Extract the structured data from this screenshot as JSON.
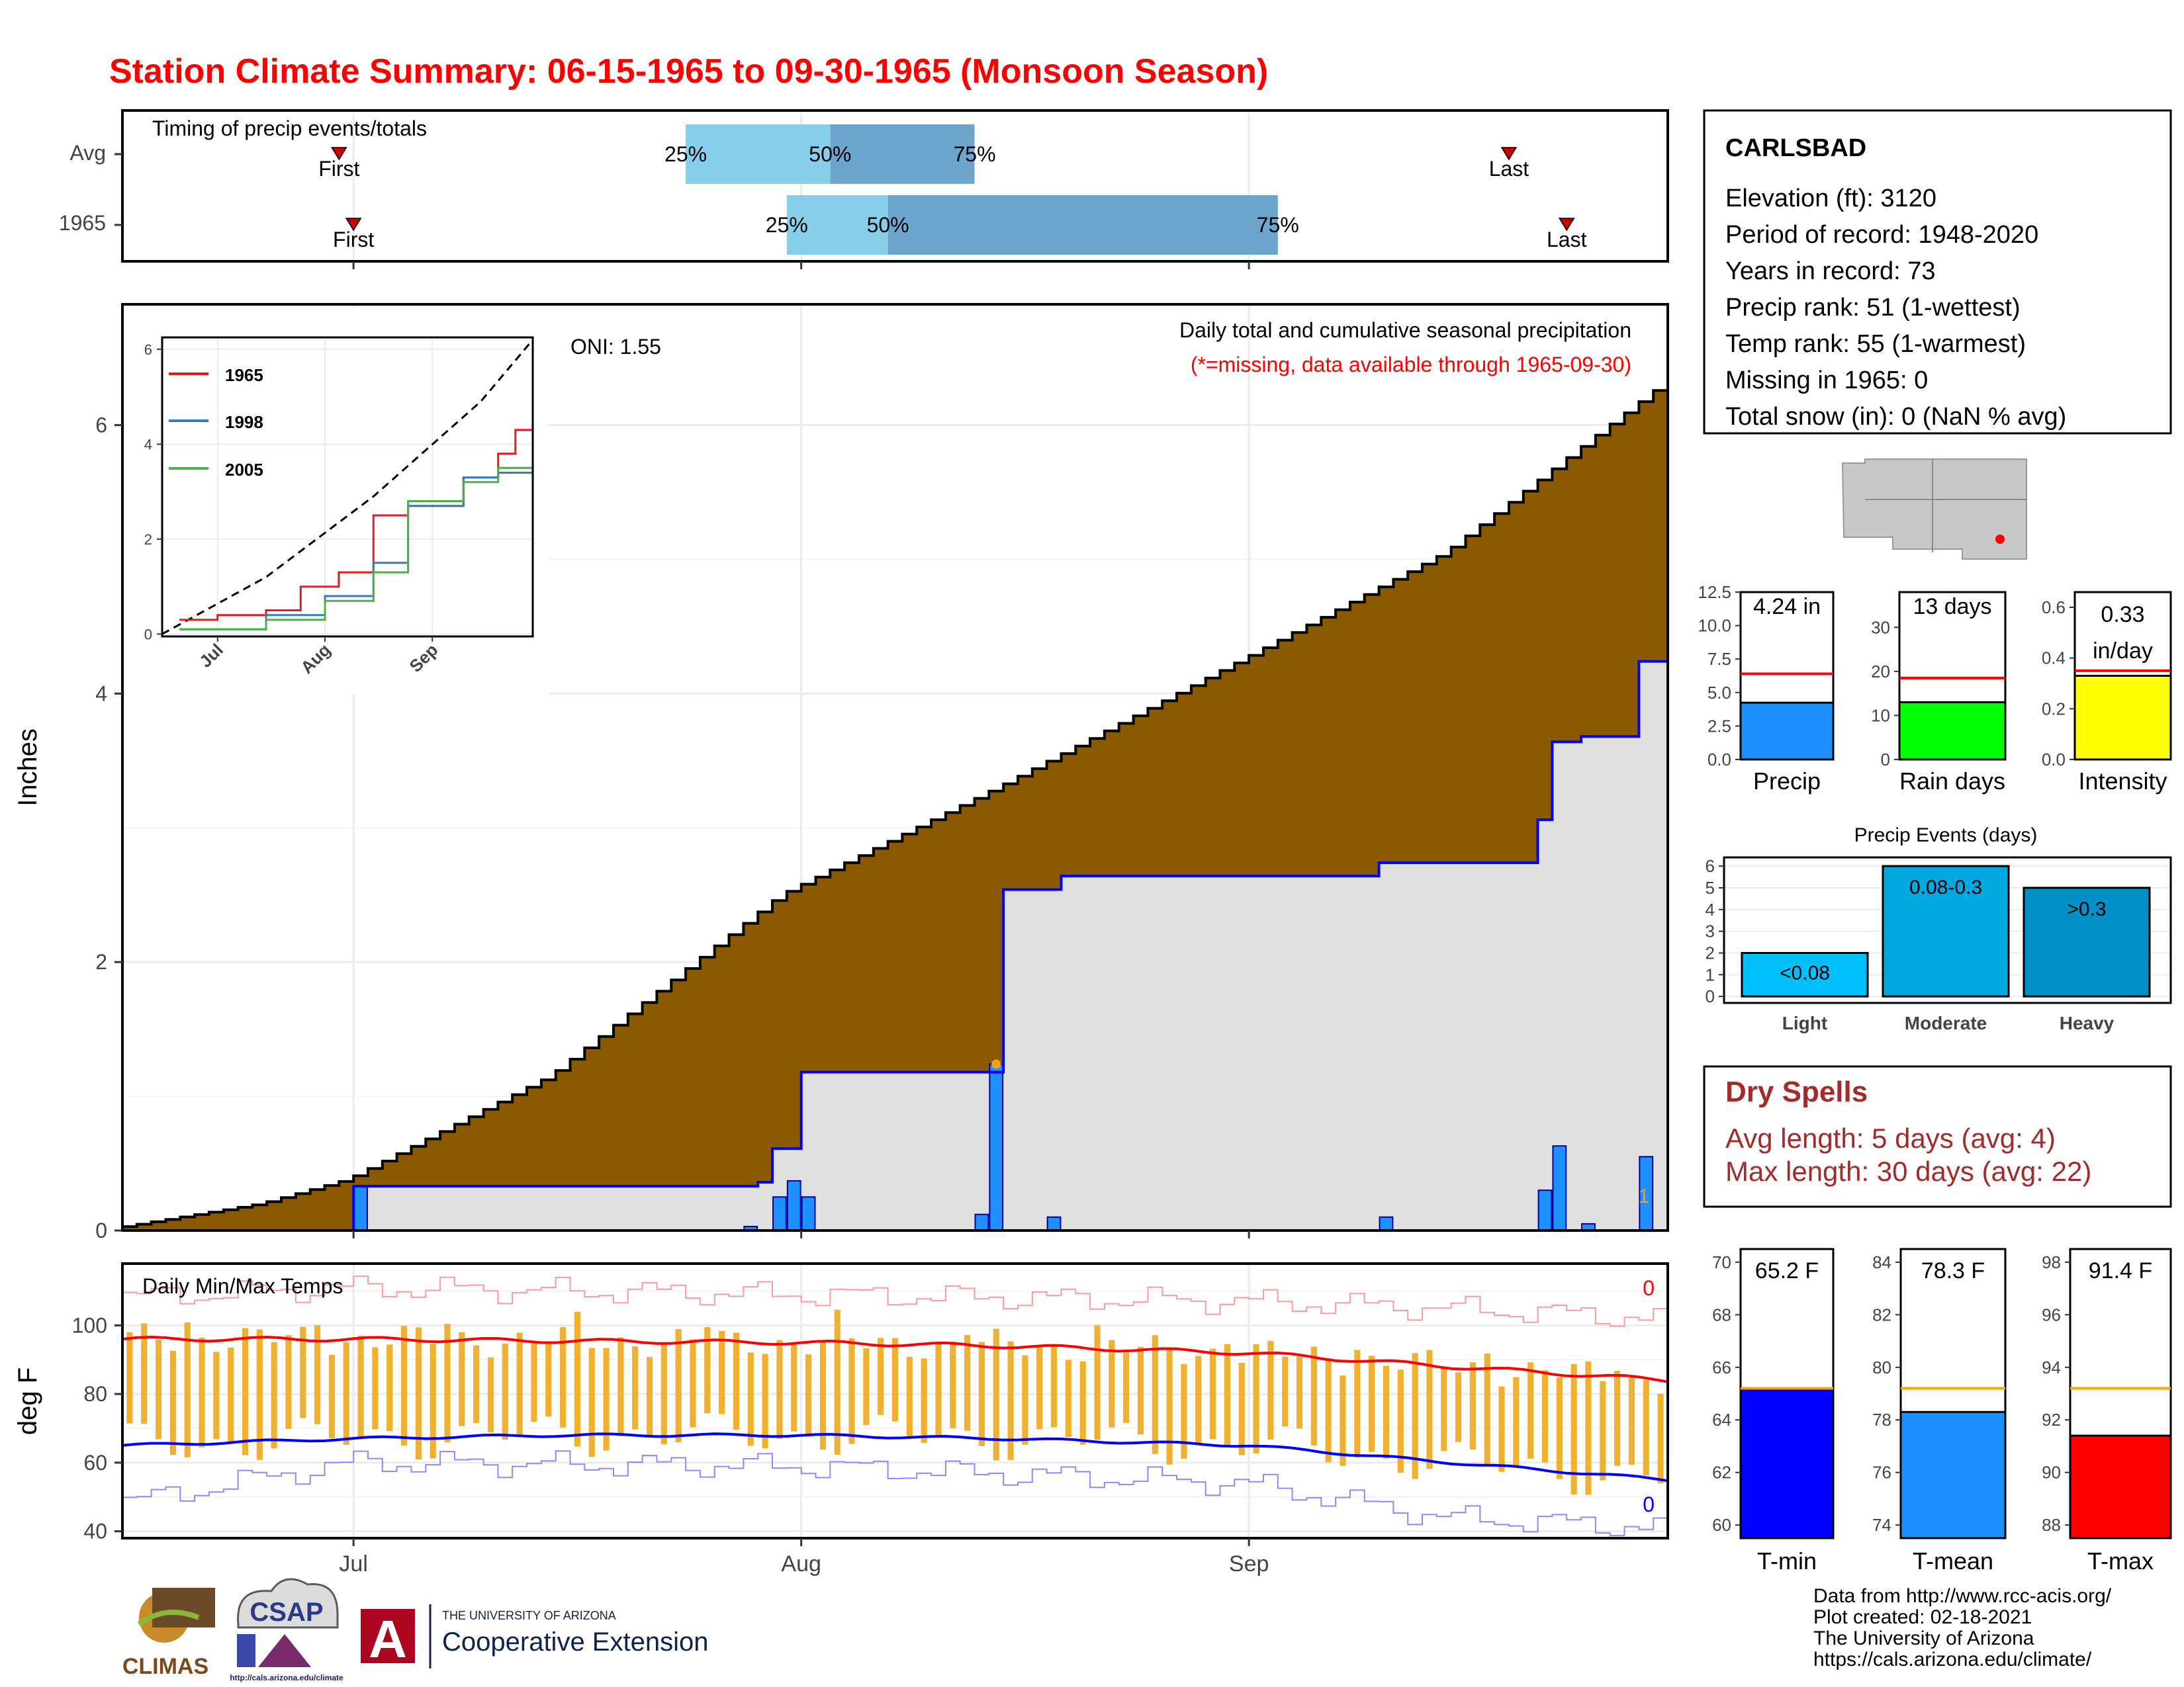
{
  "header": {
    "title": "Station Climate Summary: 06-15-1965 to 09-30-1965 (Monsoon Season)"
  },
  "colors": {
    "title": "#ff0000",
    "cumulative_avg_fill": "#8b5a00",
    "seasonal_area_fill": "#e0e0e0",
    "cumulative_line": "#0000ff",
    "daily_bar": "#1e90ff",
    "timing_q1": "#87ceeb",
    "timing_q2": "#6ca6cd",
    "temp_bar": "#f0b030",
    "tmax_avg_line": "#ff0000",
    "tmin_avg_line": "#0000ff",
    "dry_spell_text": "#a52a2a"
  },
  "timing": {
    "title": "Timing of precip events/totals",
    "rows": [
      {
        "label": "Avg",
        "first_label": "First",
        "last_label": "Last",
        "first": "06-30",
        "p25": "07-24",
        "p50": "08-03",
        "p75": "08-13",
        "last": "09-19"
      },
      {
        "label": "1965",
        "first_label": "First",
        "last_label": "Last",
        "first": "07-01",
        "p25": "07-31",
        "p50": "08-07",
        "p75": "09-03",
        "last": "09-23"
      }
    ],
    "pct_labels": [
      "25%",
      "50%",
      "75%"
    ]
  },
  "precip_panel": {
    "ylabel": "Inches",
    "oni": "ONI: 1.55",
    "subtitle1": "Daily total and cumulative seasonal precipitation",
    "subtitle2": "(*=missing, data available through 1965-09-30)",
    "missing_count": "1",
    "yticks": [
      "0",
      "2",
      "4",
      "6"
    ],
    "xticks": [
      "Jul",
      "Aug",
      "Sep"
    ]
  },
  "inset": {
    "legend": [
      "1965",
      "1998",
      "2005"
    ],
    "legend_colors": [
      "#e41a1c",
      "#377eb8",
      "#4daf4a"
    ],
    "yticks": [
      "0",
      "2",
      "4",
      "6"
    ],
    "xticks": [
      "Jul",
      "Aug",
      "Sep"
    ]
  },
  "temp_panel": {
    "ylabel": "deg F",
    "title": "Daily Min/Max Temps",
    "max_count": "0",
    "min_count": "0",
    "yticks": [
      "40",
      "60",
      "80",
      "100"
    ]
  },
  "station": {
    "name": "CARLSBAD",
    "lines": [
      "Elevation (ft): 3120",
      "Period of record: 1948-2020",
      "Years in record: 73",
      "Precip rank: 51 (1-wettest)",
      "Temp rank: 55 (1-warmest)",
      "Missing in 1965: 0",
      "Total snow (in): 0 (NaN % avg)"
    ]
  },
  "mini_bars": [
    {
      "label": "Precip",
      "value_text": "4.24 in",
      "value_text2": "",
      "value": 4.24,
      "avg": 6.4,
      "ymax": 12.5,
      "yticks": [
        "0.0",
        "2.5",
        "5.0",
        "7.5",
        "10.0",
        "12.5"
      ],
      "tick_vals": [
        0,
        2.5,
        5,
        7.5,
        10,
        12.5
      ],
      "color": "#1e90ff"
    },
    {
      "label": "Rain days",
      "value_text": "13 days",
      "value_text2": "",
      "value": 13,
      "avg": 18.5,
      "ymax": 38,
      "yticks": [
        "0",
        "10",
        "20",
        "30"
      ],
      "tick_vals": [
        0,
        10,
        20,
        30
      ],
      "color": "#00ff00"
    },
    {
      "label": "Intensity",
      "value_text": "0.33",
      "value_text2": "in/day",
      "value": 0.33,
      "avg": 0.35,
      "ymax": 0.66,
      "yticks": [
        "0.0",
        "0.2",
        "0.4",
        "0.6"
      ],
      "tick_vals": [
        0,
        0.2,
        0.4,
        0.6
      ],
      "color": "#ffff00"
    }
  ],
  "precip_events": {
    "title": "Precip Events (days)",
    "categories": [
      "Light",
      "Moderate",
      "Heavy"
    ],
    "bar_labels": [
      "<0.08",
      "0.08-0.3",
      ">0.3"
    ],
    "values": [
      2,
      6,
      5
    ],
    "colors": [
      "#00bfff",
      "#00a8e0",
      "#0090c8"
    ],
    "yticks": [
      "0",
      "1",
      "2",
      "3",
      "4",
      "5",
      "6"
    ]
  },
  "dry_spells": {
    "title": "Dry Spells",
    "avg_length": "Avg length: 5 days (avg: 4)",
    "max_length": "Max length: 30 days (avg: 22)"
  },
  "temp_bars": [
    {
      "label": "T-min",
      "value_text": "65.2 F",
      "value": 65.2,
      "avg": 65.2,
      "ymin": 59.5,
      "ymax": 70.5,
      "yticks": [
        "60",
        "62",
        "64",
        "66",
        "68",
        "70"
      ],
      "tick_vals": [
        60,
        62,
        64,
        66,
        68,
        70
      ],
      "color": "#0000ff"
    },
    {
      "label": "T-mean",
      "value_text": "78.3 F",
      "value": 78.3,
      "avg": 79.2,
      "ymin": 73.5,
      "ymax": 84.5,
      "yticks": [
        "74",
        "76",
        "78",
        "80",
        "82",
        "84"
      ],
      "tick_vals": [
        74,
        76,
        78,
        80,
        82,
        84
      ],
      "color": "#1e90ff"
    },
    {
      "label": "T-max",
      "value_text": "91.4 F",
      "value": 91.4,
      "avg": 93.2,
      "ymin": 87.5,
      "ymax": 98.5,
      "yticks": [
        "88",
        "90",
        "92",
        "94",
        "96",
        "98"
      ],
      "tick_vals": [
        88,
        90,
        92,
        94,
        96,
        98
      ],
      "color": "#ff0000"
    }
  ],
  "footer": {
    "credits": [
      "Data from http://www.rcc-acis.org/",
      "Plot created: 02-18-2021",
      "The University of Arizona",
      "https://cals.arizona.edu/climate/"
    ],
    "logos": {
      "climas": "CLIMAS",
      "csap": "CSAP",
      "csap_url": "http://cals.arizona.edu/climate",
      "ua_small": "THE UNIVERSITY OF ARIZONA",
      "ua_big": "Cooperative Extension",
      "ua_letter": "A"
    }
  },
  "chart_data": [
    {
      "type": "area",
      "title": "Daily total and cumulative seasonal precipitation",
      "ylabel": "Inches",
      "ylim": [
        0,
        6.9
      ],
      "x_range": [
        "1965-06-15",
        "1965-09-30"
      ],
      "series": [
        {
          "name": "",
          "kind": "avg cumulative",
          "dates": [
            "06-15",
            "06-25",
            "07-01",
            "07-15",
            "07-31",
            "08-15",
            "08-31",
            "09-15",
            "09-30"
          ],
          "values": [
            0.02,
            0.2,
            0.38,
            1.15,
            2.5,
            3.3,
            4.2,
            5.05,
            6.3
          ]
        },
        {
          "name": "",
          "kind": "1965 cumulative",
          "dates": [
            "06-15",
            "07-01",
            "07-28",
            "07-29",
            "07-30",
            "08-01",
            "08-14",
            "08-15",
            "08-19",
            "09-09",
            "09-10",
            "09-21",
            "09-22",
            "09-24",
            "09-25",
            "09-27",
            "09-28",
            "09-30"
          ],
          "values": [
            0.0,
            0.33,
            0.33,
            0.36,
            0.61,
            1.18,
            1.18,
            2.54,
            2.64,
            2.64,
            2.74,
            3.06,
            3.64,
            3.68,
            3.68,
            3.68,
            4.24,
            4.24
          ]
        },
        {
          "name": "",
          "kind": "1965 daily",
          "dates": [
            "07-01",
            "07-28",
            "07-30",
            "07-31",
            "08-01",
            "08-13",
            "08-14",
            "08-18",
            "09-10",
            "09-21",
            "09-22",
            "09-24",
            "09-28"
          ],
          "values": [
            0.33,
            0.03,
            0.25,
            0.37,
            0.25,
            0.12,
            1.24,
            0.1,
            0.1,
            0.3,
            0.63,
            0.05,
            0.55
          ]
        }
      ]
    },
    {
      "type": "line",
      "title": "",
      "ylim": [
        0,
        6.2
      ],
      "series": [
        {
          "name": "",
          "kind": "avg cumulative",
          "dates": [
            "06-15",
            "07-15",
            "08-15",
            "09-15",
            "09-30"
          ],
          "values": [
            0,
            1.2,
            2.9,
            4.9,
            6.2
          ]
        },
        {
          "name": "1965",
          "dates": [
            "06-20",
            "07-01",
            "07-15",
            "07-25",
            "08-05",
            "08-15",
            "08-25",
            "09-10",
            "09-20",
            "09-25",
            "09-30"
          ],
          "values": [
            0.3,
            0.4,
            0.5,
            1.0,
            1.3,
            2.5,
            2.7,
            3.3,
            3.8,
            4.3,
            4.3
          ]
        },
        {
          "name": "1998",
          "dates": [
            "06-20",
            "07-15",
            "08-01",
            "08-15",
            "08-25",
            "09-10",
            "09-20",
            "09-30"
          ],
          "values": [
            0.1,
            0.4,
            0.8,
            1.5,
            2.7,
            3.3,
            3.4,
            3.6
          ]
        },
        {
          "name": "2005",
          "dates": [
            "06-20",
            "07-15",
            "08-01",
            "08-15",
            "08-25",
            "09-10",
            "09-20",
            "09-30"
          ],
          "values": [
            0.1,
            0.3,
            0.7,
            1.3,
            2.8,
            3.2,
            3.5,
            3.4
          ]
        }
      ]
    },
    {
      "type": "bar",
      "title": "Daily Min/Max Temps",
      "ylabel": "deg F",
      "ylim": [
        38,
        118
      ],
      "series": [
        {
          "name": "",
          "kind": "avg max",
          "dates": [
            "06-15",
            "07-01",
            "07-15",
            "08-01",
            "08-15",
            "09-01",
            "09-15",
            "09-30"
          ],
          "values": [
            96,
            96,
            95.5,
            95,
            94,
            92,
            88,
            84
          ]
        },
        {
          "name": "",
          "kind": "avg min",
          "dates": [
            "06-15",
            "07-01",
            "07-15",
            "08-01",
            "08-15",
            "09-01",
            "09-15",
            "09-30"
          ],
          "values": [
            65,
            67,
            68,
            68,
            67,
            65,
            60,
            55
          ]
        },
        {
          "name": "",
          "kind": "record high",
          "dates": [
            "06-15",
            "07-01",
            "08-01",
            "09-01",
            "09-15",
            "09-30"
          ],
          "values": [
            108,
            111,
            109,
            107,
            105,
            102
          ]
        },
        {
          "name": "",
          "kind": "record low",
          "dates": [
            "06-15",
            "07-01",
            "08-01",
            "09-01",
            "09-15",
            "09-30"
          ],
          "values": [
            48,
            60,
            59,
            54,
            44,
            41
          ]
        }
      ]
    },
    {
      "type": "bar",
      "title": "Precip Events (days)",
      "categories": [
        "Light",
        "Moderate",
        "Heavy"
      ],
      "values": [
        2,
        6,
        5
      ]
    }
  ]
}
